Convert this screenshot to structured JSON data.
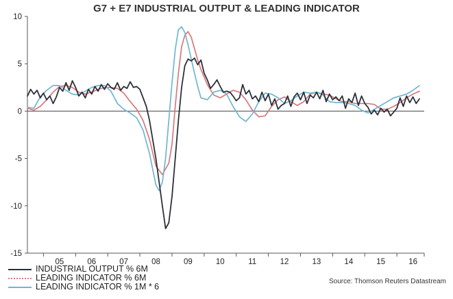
{
  "chart_data": {
    "type": "line",
    "title": "G7 + E7 INDUSTRIAL OUTPUT & LEADING INDICATOR",
    "ylim": [
      -15,
      10
    ],
    "yticks": [
      10,
      5,
      0,
      -5,
      -10,
      -15
    ],
    "xlim": [
      2004.5,
      2016.85
    ],
    "year_labels": [
      "05",
      "06",
      "07",
      "08",
      "09",
      "10",
      "11",
      "12",
      "13",
      "14",
      "15",
      "16"
    ],
    "source": "Source: Thomson Reuters Datastream",
    "series": [
      {
        "name": "INDUSTRIAL OUTPUT % 6M",
        "color": "#2b2f3a",
        "x": [
          2004.5,
          2004.6,
          2004.7,
          2004.8,
          2004.9,
          2005.0,
          2005.1,
          2005.2,
          2005.3,
          2005.4,
          2005.5,
          2005.6,
          2005.7,
          2005.8,
          2005.9,
          2006.0,
          2006.1,
          2006.2,
          2006.3,
          2006.4,
          2006.5,
          2006.6,
          2006.7,
          2006.8,
          2006.9,
          2007.0,
          2007.1,
          2007.2,
          2007.3,
          2007.4,
          2007.5,
          2007.6,
          2007.7,
          2007.8,
          2007.9,
          2008.0,
          2008.1,
          2008.2,
          2008.3,
          2008.4,
          2008.5,
          2008.6,
          2008.7,
          2008.8,
          2008.9,
          2009.0,
          2009.1,
          2009.2,
          2009.3,
          2009.4,
          2009.5,
          2009.6,
          2009.7,
          2009.8,
          2009.9,
          2010.0,
          2010.1,
          2010.2,
          2010.3,
          2010.4,
          2010.5,
          2010.6,
          2010.7,
          2010.8,
          2010.9,
          2011.0,
          2011.1,
          2011.2,
          2011.3,
          2011.4,
          2011.5,
          2011.6,
          2011.7,
          2011.8,
          2011.9,
          2012.0,
          2012.1,
          2012.2,
          2012.3,
          2012.4,
          2012.5,
          2012.6,
          2012.7,
          2012.8,
          2012.9,
          2013.0,
          2013.1,
          2013.2,
          2013.3,
          2013.4,
          2013.5,
          2013.6,
          2013.7,
          2013.8,
          2013.9,
          2014.0,
          2014.1,
          2014.2,
          2014.3,
          2014.4,
          2014.5,
          2014.6,
          2014.7,
          2014.8,
          2014.9,
          2015.0,
          2015.1,
          2015.2,
          2015.3,
          2015.4,
          2015.5,
          2015.6,
          2015.7,
          2015.8,
          2015.9,
          2016.0,
          2016.1,
          2016.2,
          2016.3,
          2016.4,
          2016.5,
          2016.6,
          2016.7
        ],
        "values": [
          1.6,
          2.3,
          1.8,
          2.2,
          1.4,
          1.9,
          1.2,
          1.6,
          0.8,
          1.5,
          2.5,
          2.1,
          3.0,
          2.2,
          3.2,
          2.5,
          1.6,
          2.0,
          1.4,
          2.3,
          1.8,
          2.6,
          2.1,
          2.8,
          2.3,
          2.9,
          2.5,
          2.3,
          3.0,
          2.2,
          2.6,
          2.4,
          3.1,
          2.5,
          2.6,
          2.3,
          1.4,
          0.5,
          -1.0,
          -3.0,
          -5.0,
          -7.5,
          -10.0,
          -12.4,
          -11.8,
          -9.0,
          -5.0,
          -1.0,
          2.5,
          4.8,
          5.5,
          5.3,
          5.6,
          4.9,
          5.4,
          4.0,
          3.3,
          2.4,
          2.8,
          3.3,
          2.6,
          2.0,
          2.1,
          2.0,
          1.6,
          1.1,
          1.4,
          2.8,
          1.8,
          2.2,
          1.3,
          1.6,
          1.0,
          2.0,
          1.1,
          1.8,
          0.6,
          1.3,
          0.2,
          0.6,
          0.8,
          1.6,
          0.5,
          1.5,
          1.9,
          1.2,
          2.0,
          0.8,
          1.7,
          1.4,
          2.0,
          1.3,
          2.2,
          1.0,
          1.8,
          1.2,
          1.5,
          1.1,
          1.6,
          0.3,
          1.3,
          0.9,
          1.9,
          0.6,
          1.6,
          0.8,
          0.4,
          -0.3,
          0.1,
          -0.4,
          0.3,
          -0.1,
          0.2,
          -0.5,
          -0.1,
          0.3,
          1.4,
          0.5,
          1.6,
          0.9,
          1.5,
          0.8,
          1.3
        ]
      },
      {
        "name": "LEADING INDICATOR % 6M",
        "color": "#d9787b",
        "x": [
          2004.5,
          2004.7,
          2004.9,
          2005.1,
          2005.3,
          2005.5,
          2005.7,
          2005.9,
          2006.1,
          2006.3,
          2006.5,
          2006.7,
          2006.9,
          2007.1,
          2007.3,
          2007.5,
          2007.7,
          2007.9,
          2008.1,
          2008.3,
          2008.5,
          2008.7,
          2008.9,
          2009.0,
          2009.1,
          2009.2,
          2009.3,
          2009.4,
          2009.5,
          2009.6,
          2009.7,
          2009.8,
          2009.9,
          2010.1,
          2010.3,
          2010.5,
          2010.7,
          2010.9,
          2011.1,
          2011.3,
          2011.5,
          2011.7,
          2011.9,
          2012.1,
          2012.3,
          2012.5,
          2012.7,
          2012.9,
          2013.1,
          2013.3,
          2013.5,
          2013.7,
          2013.9,
          2014.1,
          2014.3,
          2014.5,
          2014.7,
          2014.9,
          2015.1,
          2015.3,
          2015.5,
          2015.7,
          2015.9,
          2016.1,
          2016.3,
          2016.5,
          2016.7
        ],
        "values": [
          0.3,
          0.1,
          0.5,
          1.2,
          2.0,
          2.6,
          2.7,
          2.5,
          2.0,
          1.8,
          2.0,
          2.3,
          2.5,
          2.5,
          2.4,
          1.9,
          1.0,
          0.2,
          -1.0,
          -3.0,
          -5.8,
          -6.7,
          -5.5,
          -3.5,
          0.5,
          4.0,
          6.8,
          8.0,
          8.4,
          7.8,
          6.6,
          5.4,
          4.4,
          2.8,
          1.7,
          1.4,
          1.8,
          2.2,
          2.0,
          1.2,
          0.1,
          -0.6,
          -0.5,
          0.5,
          1.2,
          1.5,
          1.0,
          0.6,
          1.0,
          1.8,
          2.0,
          1.8,
          1.7,
          1.3,
          1.0,
          1.0,
          0.8,
          0.8,
          0.8,
          0.7,
          0.2,
          0.2,
          0.5,
          0.9,
          1.4,
          1.8,
          2.1
        ]
      },
      {
        "name": "LEADING INDICATOR % 1M * 6",
        "color": "#6fb6cf",
        "x": [
          2004.5,
          2004.7,
          2004.9,
          2005.1,
          2005.3,
          2005.5,
          2005.7,
          2005.9,
          2006.1,
          2006.3,
          2006.5,
          2006.7,
          2006.9,
          2007.1,
          2007.3,
          2007.5,
          2007.7,
          2007.9,
          2008.1,
          2008.3,
          2008.5,
          2008.6,
          2008.7,
          2008.8,
          2008.9,
          2009.0,
          2009.1,
          2009.2,
          2009.3,
          2009.4,
          2009.5,
          2009.6,
          2009.7,
          2009.8,
          2009.9,
          2010.1,
          2010.3,
          2010.5,
          2010.7,
          2010.9,
          2011.1,
          2011.3,
          2011.5,
          2011.7,
          2011.9,
          2012.1,
          2012.3,
          2012.5,
          2012.7,
          2012.9,
          2013.1,
          2013.3,
          2013.5,
          2013.7,
          2013.9,
          2014.1,
          2014.3,
          2014.5,
          2014.7,
          2014.9,
          2015.1,
          2015.3,
          2015.5,
          2015.7,
          2015.9,
          2016.1,
          2016.3,
          2016.5,
          2016.7
        ],
        "values": [
          0.4,
          0.3,
          1.5,
          2.2,
          2.7,
          2.7,
          2.2,
          1.8,
          1.7,
          2.1,
          2.5,
          2.7,
          2.7,
          2.1,
          0.8,
          0.2,
          -0.2,
          -0.7,
          -2.0,
          -4.5,
          -7.8,
          -8.4,
          -7.5,
          -5.0,
          -1.0,
          3.0,
          6.5,
          8.6,
          8.9,
          8.3,
          7.0,
          5.5,
          4.0,
          2.6,
          1.4,
          1.2,
          2.0,
          2.2,
          1.8,
          0.5,
          -0.6,
          -1.1,
          -0.3,
          1.0,
          1.9,
          1.8,
          1.4,
          0.8,
          1.1,
          1.6,
          2.0,
          1.9,
          2.0,
          1.7,
          1.0,
          0.9,
          0.9,
          0.8,
          0.6,
          0.1,
          -0.2,
          0.2,
          0.6,
          1.0,
          1.4,
          1.6,
          1.8,
          2.2,
          2.7
        ]
      }
    ]
  }
}
